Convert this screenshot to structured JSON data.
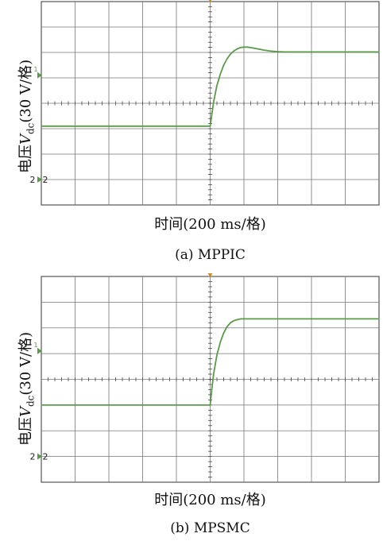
{
  "chart_data": [
    {
      "type": "line",
      "panel": "(a) MPPIC",
      "caption": "(a) MPPIC",
      "xlabel": "时间(200 ms/格)",
      "ylabel": {
        "prefix": "电压",
        "symbol": "V",
        "sub": "dc",
        "suffix": "(30 V/格)"
      },
      "grid": true,
      "x_divisions": 10,
      "y_divisions": 8,
      "xlim": [
        0,
        10
      ],
      "ylim": [
        0,
        8
      ],
      "markers": {
        "ch1": "1",
        "ch2": "2"
      },
      "series": [
        {
          "color": "#5a9a4a",
          "x": [
            0,
            5.0,
            5.02,
            5.1,
            5.2,
            5.3,
            5.4,
            5.5,
            5.6,
            5.7,
            5.8,
            5.9,
            6.0,
            6.1,
            6.2,
            6.4,
            6.6,
            6.8,
            7.0,
            7.2,
            7.5,
            10
          ],
          "y": [
            3.1,
            3.1,
            3.3,
            4.05,
            4.7,
            5.15,
            5.5,
            5.75,
            5.93,
            6.06,
            6.14,
            6.19,
            6.21,
            6.21,
            6.19,
            6.14,
            6.09,
            6.05,
            6.03,
            6.02,
            6.02,
            6.02
          ]
        }
      ]
    },
    {
      "type": "line",
      "panel": "(b) MPSMC",
      "caption": "(b) MPSMC",
      "xlabel": "时间(200 ms/格)",
      "ylabel": {
        "prefix": "电压",
        "symbol": "V",
        "sub": "dc",
        "suffix": "(30 V/格)"
      },
      "grid": true,
      "x_divisions": 10,
      "y_divisions": 8,
      "xlim": [
        0,
        10
      ],
      "ylim": [
        0,
        8
      ],
      "markers": {
        "ch1": "1",
        "ch2": "2"
      },
      "series": [
        {
          "color": "#5a9a4a",
          "x": [
            0,
            5.0,
            5.02,
            5.1,
            5.2,
            5.3,
            5.4,
            5.5,
            5.6,
            5.7,
            5.8,
            5.9,
            6.0,
            10
          ],
          "y": [
            3.0,
            3.0,
            3.3,
            4.2,
            4.95,
            5.45,
            5.8,
            6.05,
            6.2,
            6.28,
            6.32,
            6.35,
            6.35,
            6.35
          ]
        }
      ]
    }
  ]
}
